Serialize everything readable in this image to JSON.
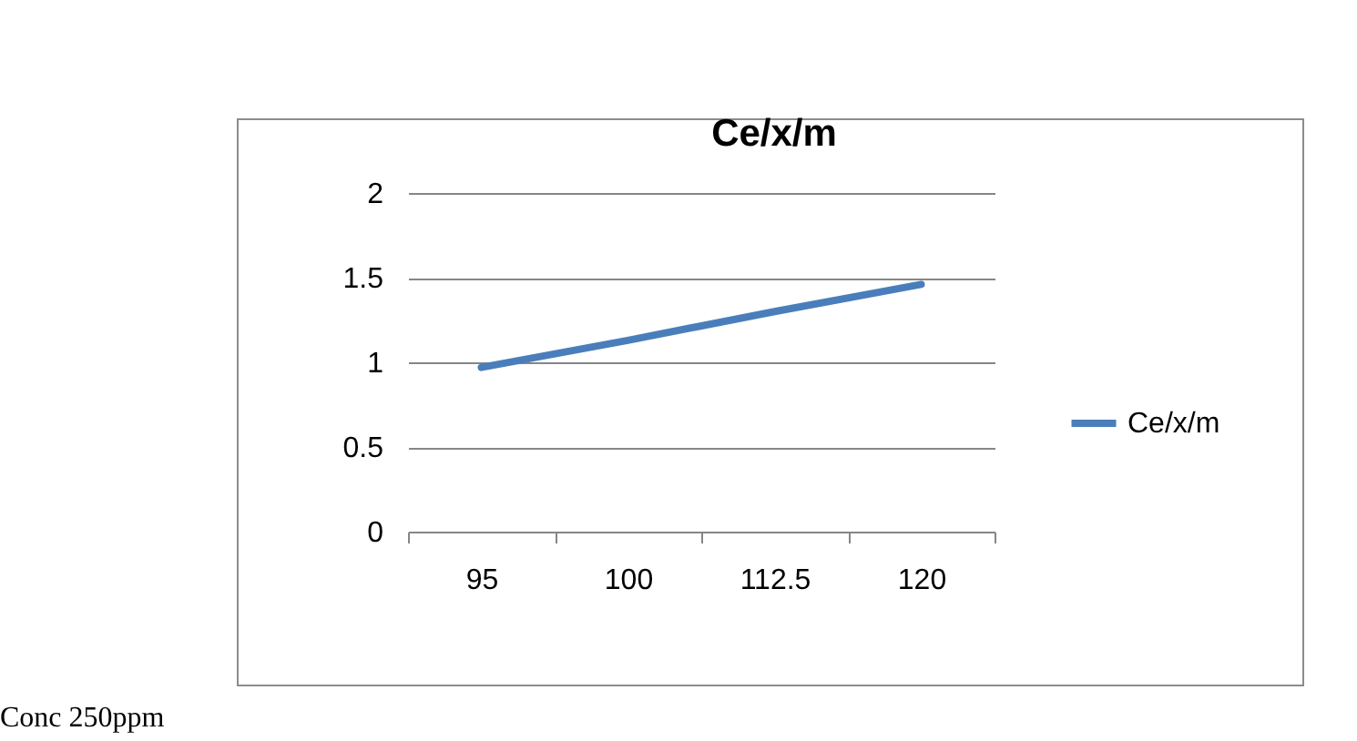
{
  "chart_data": {
    "type": "line",
    "title": "Ce/x/m",
    "categories": [
      "95",
      "100",
      "112.5",
      "120"
    ],
    "series": [
      {
        "name": "Ce/x/m",
        "color": "#4a7ebb",
        "values": [
          0.97,
          1.13,
          1.3,
          1.46
        ]
      }
    ],
    "ylim": [
      0,
      2
    ],
    "yticks": [
      0,
      0.5,
      1,
      1.5,
      2
    ],
    "grid": "y",
    "legend": "right",
    "marker": "none",
    "annotations": [
      "Conc 250ppm"
    ]
  }
}
